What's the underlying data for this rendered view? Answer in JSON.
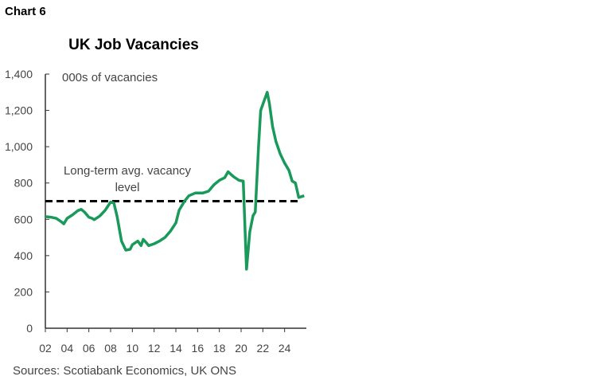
{
  "chart_label": "Chart 6",
  "chart_data": {
    "type": "line",
    "title": "UK Job Vacancies",
    "ylabel": "000s of vacancies",
    "xlabel": "",
    "ylim": [
      0,
      1400
    ],
    "xlim": [
      2002,
      2026
    ],
    "yticks": [
      0,
      200,
      400,
      600,
      800,
      1000,
      1200,
      1400
    ],
    "ytick_labels": [
      "0",
      "200",
      "400",
      "600",
      "800",
      "1,000",
      "1,200",
      "1,400"
    ],
    "xticks": [
      2002,
      2004,
      2006,
      2008,
      2010,
      2012,
      2014,
      2016,
      2018,
      2020,
      2022,
      2024
    ],
    "xtick_labels": [
      "02",
      "04",
      "06",
      "08",
      "10",
      "12",
      "14",
      "16",
      "18",
      "20",
      "22",
      "24"
    ],
    "grid": false,
    "series": [
      {
        "color": "#1a9a5a",
        "points": [
          [
            2002.0,
            615
          ],
          [
            2002.5,
            612
          ],
          [
            2003.0,
            605
          ],
          [
            2003.5,
            585
          ],
          [
            2003.7,
            575
          ],
          [
            2004.0,
            605
          ],
          [
            2004.5,
            625
          ],
          [
            2005.0,
            648
          ],
          [
            2005.3,
            655
          ],
          [
            2005.6,
            640
          ],
          [
            2006.0,
            612
          ],
          [
            2006.3,
            605
          ],
          [
            2006.5,
            598
          ],
          [
            2007.0,
            618
          ],
          [
            2007.5,
            650
          ],
          [
            2008.0,
            695
          ],
          [
            2008.3,
            690
          ],
          [
            2008.6,
            615
          ],
          [
            2009.0,
            480
          ],
          [
            2009.4,
            430
          ],
          [
            2009.8,
            435
          ],
          [
            2010.0,
            460
          ],
          [
            2010.5,
            480
          ],
          [
            2010.8,
            455
          ],
          [
            2011.0,
            490
          ],
          [
            2011.3,
            470
          ],
          [
            2011.5,
            455
          ],
          [
            2012.0,
            465
          ],
          [
            2012.5,
            480
          ],
          [
            2013.0,
            500
          ],
          [
            2013.5,
            535
          ],
          [
            2014.0,
            580
          ],
          [
            2014.3,
            650
          ],
          [
            2014.8,
            700
          ],
          [
            2015.2,
            730
          ],
          [
            2015.8,
            745
          ],
          [
            2016.5,
            745
          ],
          [
            2017.0,
            755
          ],
          [
            2017.5,
            790
          ],
          [
            2018.0,
            815
          ],
          [
            2018.5,
            830
          ],
          [
            2018.8,
            862
          ],
          [
            2019.3,
            835
          ],
          [
            2019.8,
            815
          ],
          [
            2020.2,
            810
          ],
          [
            2020.5,
            325
          ],
          [
            2020.8,
            530
          ],
          [
            2021.1,
            620
          ],
          [
            2021.3,
            640
          ],
          [
            2021.6,
            1000
          ],
          [
            2021.8,
            1200
          ],
          [
            2022.1,
            1250
          ],
          [
            2022.4,
            1300
          ],
          [
            2022.6,
            1240
          ],
          [
            2022.9,
            1110
          ],
          [
            2023.2,
            1030
          ],
          [
            2023.6,
            960
          ],
          [
            2024.0,
            910
          ],
          [
            2024.4,
            870
          ],
          [
            2024.7,
            810
          ],
          [
            2025.0,
            800
          ],
          [
            2025.3,
            720
          ],
          [
            2025.8,
            730
          ]
        ]
      }
    ],
    "reference_line": {
      "value": 700,
      "label_line1": "Long-term avg. vacancy",
      "label_line2": "level",
      "style": "dashed",
      "color": "#000000"
    },
    "source": "Sources: Scotiabank Economics, UK ONS"
  }
}
